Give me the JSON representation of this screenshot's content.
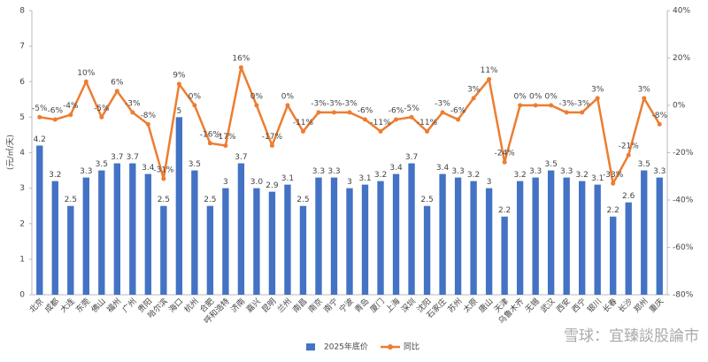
{
  "chart_data": {
    "type": "bar_line",
    "y_label": "(元/㎡/天)",
    "watermark": "雪球：宜臻談股論市",
    "categories": [
      "北京",
      "成都",
      "大连",
      "东莞",
      "佛山",
      "福州",
      "广州",
      "贵阳",
      "哈尔滨",
      "海口",
      "杭州",
      "合肥",
      "呼和浩特",
      "济南",
      "嘉兴",
      "昆明",
      "兰州",
      "南昌",
      "南京",
      "南宁",
      "宁波",
      "青岛",
      "厦门",
      "上海",
      "深圳",
      "沈阳",
      "石家庄",
      "苏州",
      "太原",
      "唐山",
      "天津",
      "乌鲁木齐",
      "无锡",
      "武汉",
      "西安",
      "西宁",
      "银川",
      "长春",
      "长沙",
      "郑州",
      "重庆"
    ],
    "series": [
      {
        "name": "2025年底价",
        "color": "#4472c4",
        "values": [
          4.2,
          3.2,
          2.5,
          3.3,
          3.5,
          3.7,
          3.7,
          3.4,
          2.5,
          5,
          3.5,
          2.5,
          3,
          3.7,
          3.0,
          2.9,
          3.1,
          2.5,
          3.3,
          3.3,
          3,
          3.1,
          3.2,
          3.4,
          3.7,
          2.5,
          3.4,
          3.3,
          3.2,
          3,
          2.2,
          3.2,
          3.3,
          3.5,
          3.3,
          3.2,
          3.1,
          2.2,
          2.6,
          3.5,
          3.3
        ],
        "value_labels": [
          "4.2",
          "3.2",
          "2.5",
          "3.3",
          "3.5",
          "3.7",
          "3.7",
          "3.4",
          "2.5",
          "5",
          "3.5",
          "2.5",
          "3",
          "3.7",
          "3.0",
          "2.9",
          "3.1",
          "2.5",
          "3.3",
          "3.3",
          "3",
          "3.1",
          "3.2",
          "3.4",
          "3.7",
          "2.5",
          "3.4",
          "3.3",
          "3.2",
          "3",
          "2.2",
          "3.2",
          "3.3",
          "3.5",
          "3.3",
          "3.2",
          "3.1",
          "2.2",
          "2.6",
          "3.5",
          "3.3"
        ]
      },
      {
        "name": "同比",
        "color": "#ed7d31",
        "axis": "y2",
        "values": [
          -5,
          -6,
          -4,
          10,
          -5,
          6,
          -3,
          -8,
          -31,
          9,
          0,
          -16,
          -17,
          16,
          0,
          -17,
          0,
          -11,
          -3,
          -3,
          -3,
          -6,
          -11,
          -6,
          -5,
          -11,
          -3,
          -6,
          3,
          11,
          -24,
          0,
          0,
          0,
          -3,
          -3,
          3,
          -33,
          -21,
          3,
          -8
        ],
        "value_labels": [
          "-5%",
          "-6%",
          "-4%",
          "10%",
          "-5%",
          "6%",
          "-3%",
          "-8%",
          "-31%",
          "9%",
          "0%",
          "-16%",
          "-17%",
          "16%",
          "0%",
          "-17%",
          "0%",
          "-11%",
          "-3%",
          "-3%",
          "-3%",
          "-6%",
          "-11%",
          "-6%",
          "-5%",
          "-11%",
          "-3%",
          "-6%",
          "3%",
          "11%",
          "-24%",
          "0%",
          "0%",
          "0%",
          "-3%",
          "-3%",
          "3%",
          "-33%",
          "-21%",
          "3%",
          "-8%"
        ]
      }
    ],
    "ylim": [
      0,
      8
    ],
    "yticks": [
      0,
      1,
      2,
      3,
      4,
      5,
      6,
      7,
      8
    ],
    "y2lim": [
      -80,
      40
    ],
    "y2ticks": [
      {
        "value": -80,
        "label": "-80%"
      },
      {
        "value": -60,
        "label": "-60%"
      },
      {
        "value": -40,
        "label": "-40%"
      },
      {
        "value": -20,
        "label": "-20%"
      },
      {
        "value": 0,
        "label": "0%"
      },
      {
        "value": 20,
        "label": "20%"
      },
      {
        "value": 40,
        "label": "40%"
      }
    ],
    "grid": false,
    "legend": "bottom"
  }
}
